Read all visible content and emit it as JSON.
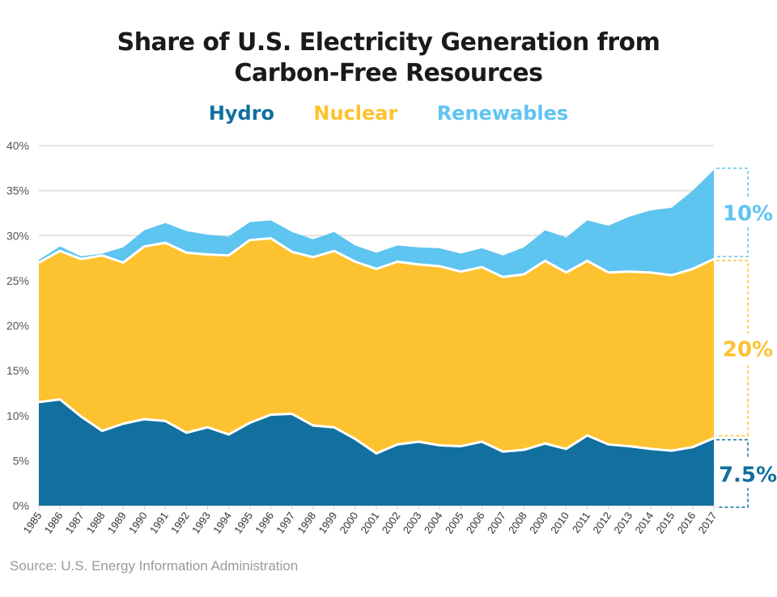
{
  "chart_data": {
    "type": "area",
    "stacked": true,
    "title": "Share of U.S. Electricity Generation from Carbon-Free Resources",
    "title_lines": [
      "Share of U.S. Electricity Generation from",
      "Carbon-Free Resources"
    ],
    "x": [
      1985,
      1986,
      1987,
      1988,
      1989,
      1990,
      1991,
      1992,
      1993,
      1994,
      1995,
      1996,
      1997,
      1998,
      1999,
      2000,
      2001,
      2002,
      2003,
      2004,
      2005,
      2006,
      2007,
      2008,
      2009,
      2010,
      2011,
      2012,
      2013,
      2014,
      2015,
      2016,
      2017
    ],
    "series": [
      {
        "name": "Hydro",
        "color": "#11709f",
        "values": [
          11.5,
          11.8,
          9.9,
          8.3,
          9.1,
          9.6,
          9.4,
          8.1,
          8.7,
          7.9,
          9.2,
          10.1,
          10.2,
          8.9,
          8.7,
          7.4,
          5.8,
          6.8,
          7.1,
          6.7,
          6.6,
          7.1,
          6.0,
          6.2,
          6.9,
          6.3,
          7.8,
          6.8,
          6.6,
          6.3,
          6.1,
          6.5,
          7.5
        ]
      },
      {
        "name": "Nuclear",
        "color": "#fdc22f",
        "values": [
          15.5,
          16.5,
          17.5,
          19.5,
          17.9,
          19.2,
          19.8,
          20.0,
          19.2,
          19.9,
          20.3,
          19.6,
          18.0,
          18.7,
          19.6,
          19.7,
          20.5,
          20.3,
          19.7,
          19.9,
          19.4,
          19.4,
          19.4,
          19.5,
          20.3,
          19.6,
          19.4,
          19.1,
          19.4,
          19.6,
          19.5,
          19.8,
          19.9
        ]
      },
      {
        "name": "Renewables",
        "color": "#5ec4f0",
        "values": [
          0.3,
          0.5,
          0.3,
          0.2,
          1.7,
          1.8,
          2.2,
          2.4,
          2.2,
          2.1,
          2.0,
          2.0,
          2.2,
          2.0,
          2.1,
          1.8,
          1.8,
          1.8,
          1.9,
          2.0,
          2.0,
          2.1,
          2.4,
          3.0,
          3.4,
          3.9,
          4.5,
          5.2,
          6.1,
          6.9,
          7.5,
          8.7,
          9.9
        ]
      }
    ],
    "ylim": [
      0,
      40
    ],
    "yticks": [
      "0%",
      "5%",
      "10%",
      "15%",
      "20%",
      "25%",
      "30%",
      "35%",
      "40%"
    ],
    "grid": true,
    "legend": "top",
    "annotations": [
      {
        "series": "Renewables",
        "label": "10%"
      },
      {
        "series": "Nuclear",
        "label": "20%"
      },
      {
        "series": "Hydro",
        "label": "7.5%"
      }
    ],
    "source": "Source: U.S. Energy Information Administration"
  }
}
